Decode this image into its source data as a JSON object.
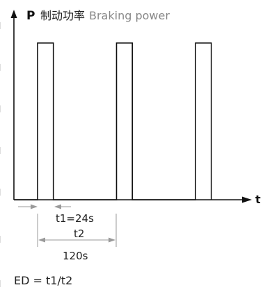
{
  "axis": {
    "y_symbol": "P",
    "y_label_cn": "制动功率",
    "y_label_en": "Braking power",
    "x_symbol": "t"
  },
  "pulses": {
    "count": 3,
    "on_time_s": 24,
    "period_s": 120
  },
  "dimensions": {
    "t1_label": "t1=24s",
    "t2_label": "t2",
    "t2_value": "120s"
  },
  "formula": "ED = t1/t2",
  "colors": {
    "line": "#111111",
    "dimension": "#9a9a9a",
    "label_secondary": "#8a8a8a",
    "text": "#222222"
  }
}
